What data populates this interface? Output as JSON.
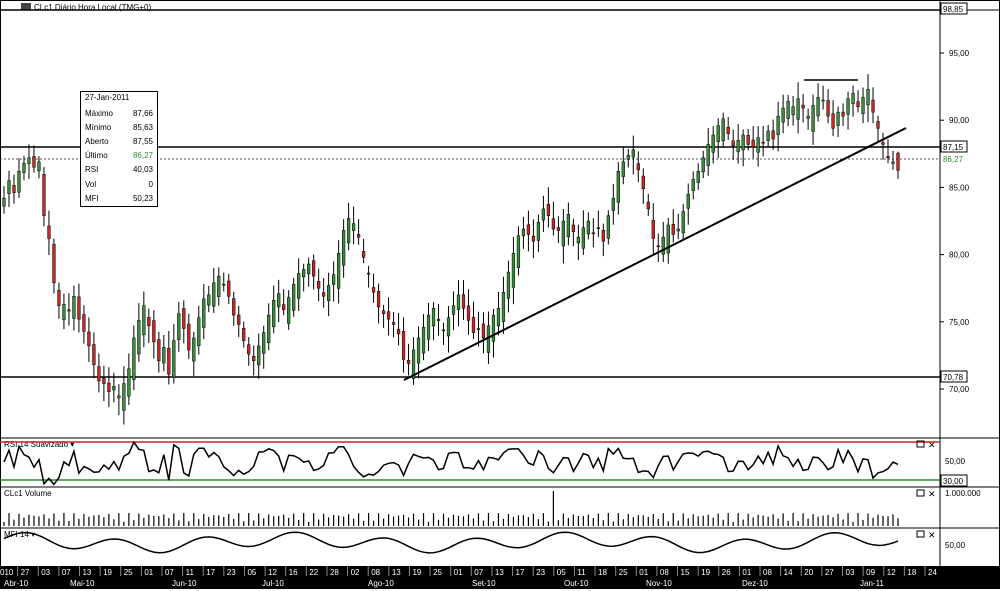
{
  "window": {
    "title": "CLc1 Diário Hora Local (TMG+0)"
  },
  "price_panel": {
    "y_ticks": [
      "95,00",
      "90,00",
      "85,00",
      "80,00",
      "75,00",
      "70,00"
    ],
    "highlight_labels": [
      {
        "text": "98,85",
        "style": "boxed"
      },
      {
        "text": "87,15",
        "style": "boxed"
      },
      {
        "text": "86,27",
        "style": "green"
      },
      {
        "text": "70,78",
        "style": "boxed"
      }
    ]
  },
  "info_box": {
    "date": "27-Jan-2011",
    "rows": [
      {
        "label": "Máximo",
        "value": "87,66"
      },
      {
        "label": "Mínimo",
        "value": "85,63"
      },
      {
        "label": "Aberto",
        "value": "87,55"
      },
      {
        "label": "Último",
        "value": "86,27",
        "highlight": true
      },
      {
        "label": "RSI",
        "value": "40,03"
      },
      {
        "label": "Vol",
        "value": "0"
      },
      {
        "label": "MFI",
        "value": "50,23"
      }
    ]
  },
  "rsi_panel": {
    "title": "RSI 14 Suavizado",
    "y_ticks": [
      "50,00"
    ],
    "boxed_label": "30,00",
    "upper_line_color": "#d62020",
    "lower_line_color": "#2e8b2e"
  },
  "volume_panel": {
    "title": "CLc1 Volume",
    "y_ticks": [
      "1.000.000"
    ]
  },
  "mfi_panel": {
    "title": "MFI 14",
    "y_ticks": [
      "50,00"
    ]
  },
  "x_axis": {
    "day_labels": [
      "010",
      "27",
      "03",
      "07",
      "13",
      "19",
      "25",
      "01",
      "07",
      "11",
      "17",
      "23",
      "05",
      "12",
      "16",
      "22",
      "28",
      "02",
      "08",
      "13",
      "19",
      "25",
      "01",
      "07",
      "13",
      "17",
      "23",
      "05",
      "11",
      "18",
      "25",
      "01",
      "08",
      "15",
      "19",
      "26",
      "01",
      "08",
      "14",
      "20",
      "27",
      "03",
      "09",
      "12",
      "18",
      "24"
    ],
    "month_labels": [
      "Abr-10",
      "Mai-10",
      "Jun-10",
      "Jul-10",
      "Ago-10",
      "Set-10",
      "Out-10",
      "Nov-10",
      "Dez-10",
      "Jan-11"
    ]
  },
  "colors": {
    "up_candle": "#3a8c3a",
    "down_candle": "#c62828",
    "axis_bg": "#000000"
  },
  "chart_data": {
    "type": "candlestick",
    "title": "CLc1 Diário Hora Local (TMG+0)",
    "ylim": [
      68,
      99
    ],
    "y_ticks": [
      70,
      75,
      80,
      85,
      90,
      95
    ],
    "x_range": [
      "2010-04",
      "2011-01-27"
    ],
    "horizontal_levels": [
      98.85,
      87.15,
      86.27,
      70.78
    ],
    "trendline": {
      "from": {
        "date": "2010-08-20",
        "price": 70.8
      },
      "to": {
        "date": "2011-01-27",
        "price": 88.5
      }
    },
    "resistance_segment": {
      "from": "2010-12-31",
      "to": "2011-01-12",
      "price": 92.7
    },
    "last_bar": {
      "date": "27-Jan-2011",
      "high": 87.66,
      "low": 85.63,
      "open": 87.55,
      "close": 86.27
    },
    "close_series": [
      84.2,
      85.5,
      84.6,
      86.2,
      86.8,
      87.2,
      86.5,
      86.9,
      82.9,
      81.2,
      77.9,
      76.2,
      76.3,
      75.8,
      76.9,
      75.2,
      74.3,
      73.2,
      71.8,
      70.6,
      70.4,
      69.8,
      70.2,
      69.5,
      70.4,
      71.5,
      73.8,
      75.1,
      76.2,
      74.7,
      73.5,
      72.1,
      73.1,
      71.1,
      73.6,
      75.6,
      74.5,
      72.9,
      73.8,
      75.3,
      76.7,
      77.0,
      77.9,
      78.4,
      77.8,
      76.9,
      75.5,
      74.8,
      73.6,
      72.6,
      72.1,
      73.2,
      74.2,
      75.5,
      76.6,
      77.1,
      75.9,
      76.8,
      77.8,
      78.6,
      78.9,
      79.3,
      78.4,
      77.5,
      76.9,
      77.7,
      78.5,
      80.1,
      81.8,
      82.7,
      82.3,
      81.3,
      79.8,
      78.6,
      77.2,
      76.1,
      75.6,
      75.2,
      74.8,
      74.1,
      72.2,
      71.9,
      72.9,
      73.8,
      74.6,
      75.5,
      76.0,
      75.2,
      74.4,
      75.3,
      76.2,
      77.0,
      76.0,
      75.1,
      74.2,
      74.5,
      73.8,
      74.7,
      75.5,
      76.0,
      77.2,
      78.7,
      80.1,
      81.4,
      81.9,
      81.5,
      81.0,
      82.4,
      83.4,
      82.9,
      81.9,
      81.8,
      82.5,
      83.0,
      81.7,
      81.3,
      82.0,
      82.5,
      81.6,
      82.0,
      81.0,
      82.9,
      84.2,
      86.2,
      86.9,
      87.4,
      87.8,
      86.3,
      84.9,
      83.4,
      81.2,
      80.6,
      81.3,
      82.2,
      81.5,
      81.9,
      83.2,
      84.5,
      85.6,
      86.2,
      87.2,
      88.2,
      88.9,
      89.6,
      90.1,
      89.0,
      88.1,
      88.5,
      88.9,
      88.2,
      88.0,
      88.7,
      88.3,
      89.2,
      88.6,
      90.3,
      90.9,
      91.4,
      91.0,
      91.6,
      90.9,
      90.3,
      91.1,
      91.7,
      91.5,
      90.3,
      89.4,
      90.6,
      90.3,
      91.6,
      92.0,
      91.0,
      91.7,
      92.3,
      90.6,
      89.4,
      88.2,
      87.2,
      86.9,
      86.27
    ]
  }
}
